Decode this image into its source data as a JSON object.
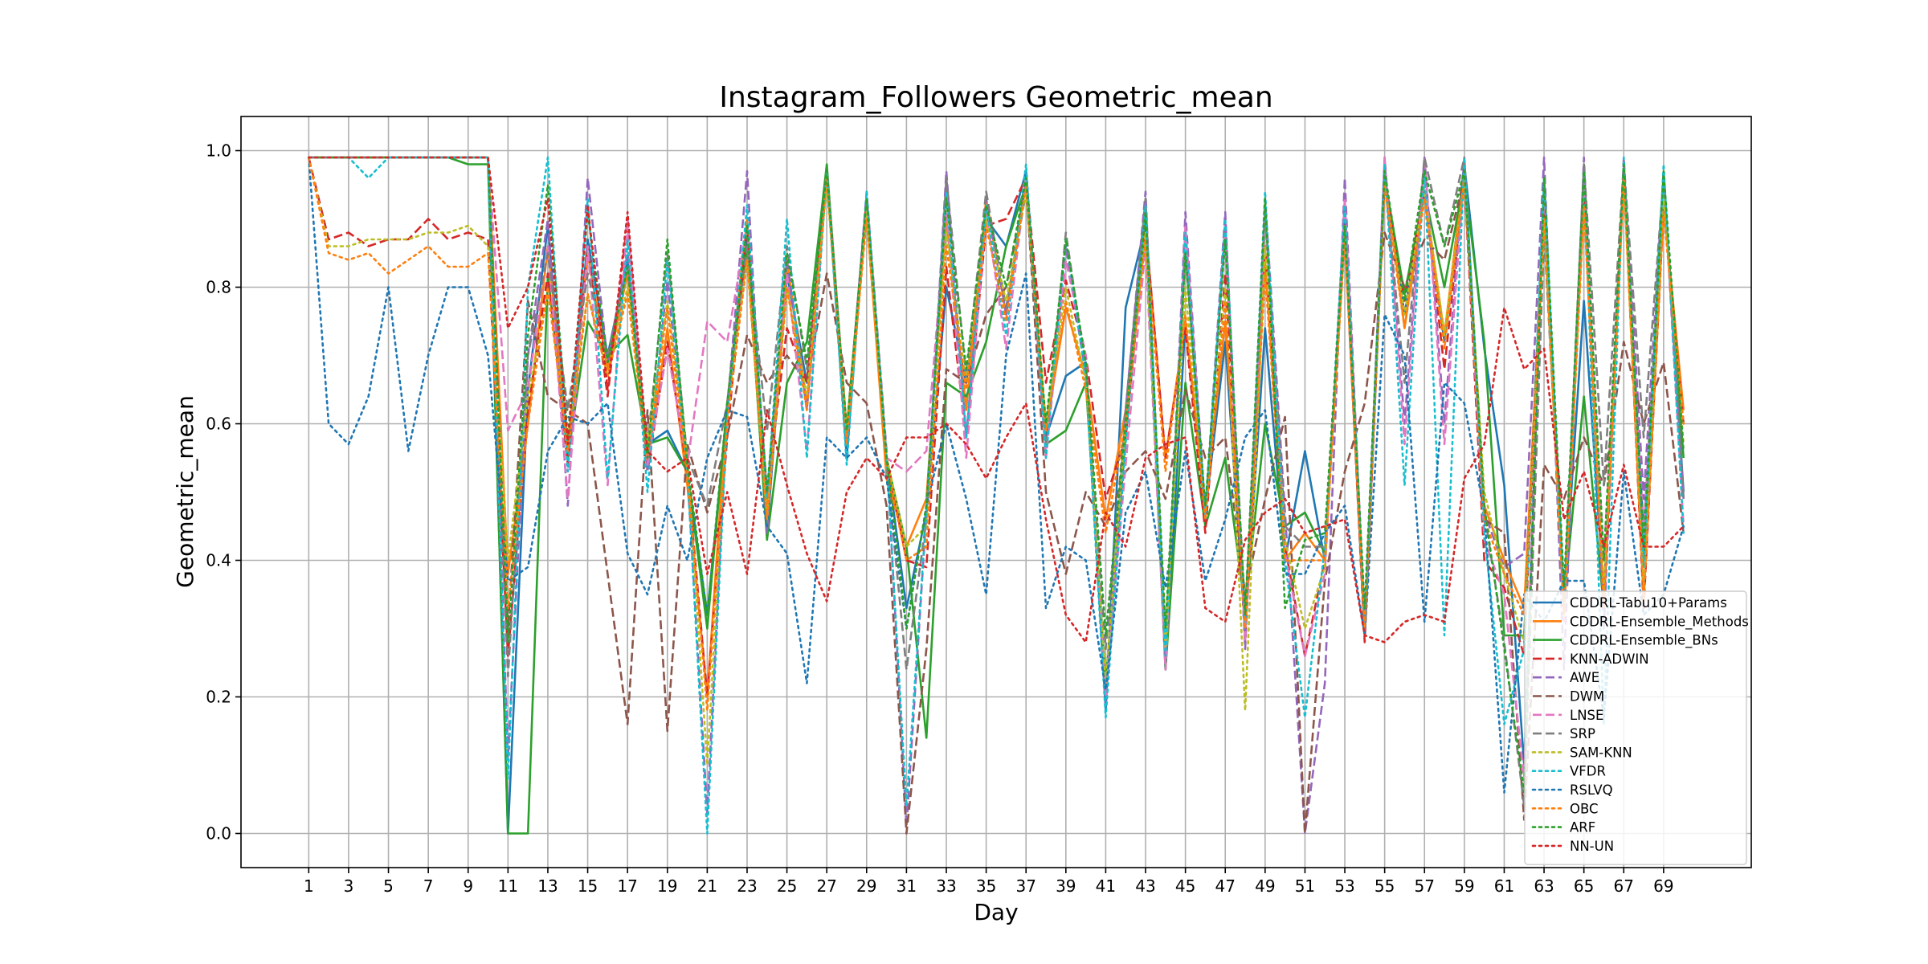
{
  "chart_data": {
    "type": "line",
    "title": "Instagram_Followers Geometric_mean",
    "xlabel": "Day",
    "ylabel": "Geometric_mean",
    "xlim": [
      -2.4,
      73.4
    ],
    "ylim": [
      -0.05,
      1.05
    ],
    "grid": true,
    "legend_position": "lower-right",
    "xticks": [
      1,
      3,
      5,
      7,
      9,
      11,
      13,
      15,
      17,
      19,
      21,
      23,
      25,
      27,
      29,
      31,
      33,
      35,
      37,
      39,
      41,
      43,
      45,
      47,
      49,
      51,
      53,
      55,
      57,
      59,
      61,
      63,
      65,
      67,
      69
    ],
    "yticks": [
      0.0,
      0.2,
      0.4,
      0.6,
      0.8,
      1.0
    ],
    "ytick_labels": [
      "0.0",
      "0.2",
      "0.4",
      "0.6",
      "0.8",
      "1.0"
    ],
    "x_start": 1,
    "series": [
      {
        "name": "CDDRL-Tabu10+Params",
        "color": "#1f77b4",
        "dash": "solid",
        "values": [
          0.99,
          0.99,
          0.99,
          0.99,
          0.99,
          0.99,
          0.99,
          0.99,
          0.99,
          0.99,
          0.0,
          0.65,
          0.89,
          0.55,
          0.87,
          0.7,
          0.84,
          0.57,
          0.59,
          0.53,
          0.32,
          0.62,
          0.87,
          0.44,
          0.82,
          0.66,
          0.97,
          0.55,
          0.93,
          0.55,
          0.33,
          0.47,
          0.8,
          0.66,
          0.9,
          0.86,
          0.97,
          0.58,
          0.67,
          0.69,
          0.18,
          0.77,
          0.89,
          0.24,
          0.75,
          0.47,
          0.72,
          0.3,
          0.74,
          0.4,
          0.56,
          0.4,
          0.91,
          0.3,
          0.96,
          0.76,
          0.94,
          0.72,
          0.98,
          0.71,
          0.51,
          0.1,
          0.95,
          0.34,
          0.78,
          0.35,
          0.97,
          0.44,
          0.95,
          0.5
        ]
      },
      {
        "name": "CDDRL-Ensemble_Methods",
        "color": "#ff7f0e",
        "dash": "solid",
        "values": [
          0.99,
          0.99,
          0.99,
          0.99,
          0.99,
          0.99,
          0.99,
          0.99,
          0.99,
          0.99,
          0.38,
          0.6,
          0.86,
          0.57,
          0.85,
          0.68,
          0.82,
          0.54,
          0.74,
          0.51,
          0.2,
          0.63,
          0.9,
          0.47,
          0.84,
          0.63,
          0.97,
          0.57,
          0.91,
          0.52,
          0.42,
          0.49,
          0.9,
          0.62,
          0.93,
          0.76,
          0.96,
          0.59,
          0.77,
          0.67,
          0.46,
          0.62,
          0.89,
          0.55,
          0.75,
          0.48,
          0.75,
          0.32,
          0.84,
          0.4,
          0.44,
          0.4,
          0.89,
          0.3,
          0.97,
          0.74,
          0.94,
          0.73,
          0.97,
          0.48,
          0.4,
          0.33,
          0.91,
          0.33,
          0.94,
          0.34,
          0.97,
          0.34,
          0.92,
          0.62
        ]
      },
      {
        "name": "CDDRL-Ensemble_BNs",
        "color": "#2ca02c",
        "dash": "solid",
        "values": [
          0.99,
          0.99,
          0.99,
          0.99,
          0.99,
          0.99,
          0.99,
          0.99,
          0.98,
          0.98,
          0.0,
          0.0,
          0.82,
          0.55,
          0.75,
          0.7,
          0.73,
          0.57,
          0.58,
          0.53,
          0.3,
          0.63,
          0.86,
          0.43,
          0.66,
          0.72,
          0.98,
          0.59,
          0.93,
          0.55,
          0.42,
          0.14,
          0.66,
          0.64,
          0.72,
          0.86,
          0.95,
          0.57,
          0.59,
          0.66,
          0.22,
          0.58,
          0.9,
          0.24,
          0.66,
          0.45,
          0.55,
          0.33,
          0.6,
          0.45,
          0.47,
          0.41,
          0.88,
          0.29,
          0.96,
          0.79,
          0.94,
          0.8,
          0.96,
          0.72,
          0.29,
          0.29,
          0.93,
          0.34,
          0.64,
          0.33,
          0.97,
          0.4,
          0.94,
          0.55
        ]
      },
      {
        "name": "KNN-ADWIN",
        "color": "#d62728",
        "dash": "dashed",
        "values": [
          0.99,
          0.87,
          0.88,
          0.86,
          0.87,
          0.87,
          0.9,
          0.87,
          0.88,
          0.87,
          0.26,
          0.62,
          0.82,
          0.54,
          0.86,
          0.64,
          0.9,
          0.53,
          0.72,
          0.53,
          0.2,
          0.58,
          0.89,
          0.5,
          0.74,
          0.66,
          0.97,
          0.59,
          0.93,
          0.55,
          0.4,
          0.39,
          0.83,
          0.58,
          0.89,
          0.9,
          0.96,
          0.66,
          0.81,
          0.7,
          0.49,
          0.58,
          0.89,
          0.55,
          0.74,
          0.44,
          0.82,
          0.28,
          0.86,
          0.42,
          0.26,
          0.4,
          0.88,
          0.28,
          0.96,
          0.78,
          0.94,
          0.68,
          0.96,
          0.4,
          0.36,
          0.26,
          0.92,
          0.33,
          0.93,
          0.33,
          0.97,
          0.33,
          0.92,
          0.6
        ]
      },
      {
        "name": "AWE",
        "color": "#9467bd",
        "dash": "dashed",
        "values": [
          0.99,
          0.99,
          0.99,
          0.99,
          0.99,
          0.99,
          0.99,
          0.99,
          0.99,
          0.99,
          0.11,
          0.7,
          0.9,
          0.48,
          0.96,
          0.69,
          0.85,
          0.53,
          0.81,
          0.53,
          0.03,
          0.62,
          0.97,
          0.44,
          0.84,
          0.62,
          0.97,
          0.58,
          0.94,
          0.56,
          0.01,
          0.47,
          0.97,
          0.58,
          0.93,
          0.76,
          0.96,
          0.55,
          0.86,
          0.67,
          0.19,
          0.62,
          0.94,
          0.25,
          0.91,
          0.47,
          0.91,
          0.27,
          0.93,
          0.47,
          0.0,
          0.22,
          0.96,
          0.3,
          0.99,
          0.6,
          0.99,
          0.6,
          0.99,
          0.47,
          0.39,
          0.41,
          0.99,
          0.24,
          0.99,
          0.3,
          0.99,
          0.49,
          0.97,
          0.49
        ]
      },
      {
        "name": "DWM",
        "color": "#8c564b",
        "dash": "dashed",
        "values": [
          0.99,
          0.99,
          0.99,
          0.99,
          0.99,
          0.99,
          0.99,
          0.99,
          0.99,
          0.99,
          0.3,
          0.78,
          0.64,
          0.62,
          0.6,
          0.38,
          0.16,
          0.62,
          0.15,
          0.57,
          0.47,
          0.58,
          0.73,
          0.66,
          0.7,
          0.66,
          0.82,
          0.66,
          0.63,
          0.48,
          0.0,
          0.27,
          0.68,
          0.66,
          0.76,
          0.8,
          0.95,
          0.5,
          0.38,
          0.5,
          0.45,
          0.53,
          0.56,
          0.49,
          0.65,
          0.55,
          0.58,
          0.35,
          0.49,
          0.61,
          0.0,
          0.37,
          0.53,
          0.63,
          0.88,
          0.8,
          0.87,
          0.84,
          0.96,
          0.46,
          0.44,
          0.02,
          0.54,
          0.49,
          0.58,
          0.51,
          0.72,
          0.6,
          0.69,
          0.44
        ]
      },
      {
        "name": "LNSE",
        "color": "#e377c2",
        "dash": "dashed",
        "values": [
          0.99,
          0.99,
          0.99,
          0.99,
          0.99,
          0.99,
          0.99,
          0.99,
          0.99,
          0.99,
          0.59,
          0.65,
          0.86,
          0.49,
          0.86,
          0.51,
          0.9,
          0.54,
          0.71,
          0.54,
          0.75,
          0.72,
          0.89,
          0.5,
          0.82,
          0.56,
          0.97,
          0.59,
          0.91,
          0.55,
          0.53,
          0.56,
          0.91,
          0.55,
          0.91,
          0.71,
          0.96,
          0.55,
          0.84,
          0.7,
          0.2,
          0.54,
          0.86,
          0.24,
          0.89,
          0.47,
          0.88,
          0.28,
          0.92,
          0.41,
          0.26,
          0.38,
          0.93,
          0.31,
          0.99,
          0.57,
          0.99,
          0.57,
          0.97,
          0.43,
          0.35,
          0.08,
          0.95,
          0.31,
          0.95,
          0.4,
          0.96,
          0.44,
          0.96,
          0.45
        ]
      },
      {
        "name": "SRP",
        "color": "#7f7f7f",
        "dash": "dashed",
        "values": [
          0.99,
          0.99,
          0.99,
          0.99,
          0.99,
          0.99,
          0.99,
          0.99,
          0.99,
          0.99,
          0.23,
          0.7,
          0.85,
          0.62,
          0.82,
          0.7,
          0.83,
          0.57,
          0.85,
          0.55,
          0.48,
          0.63,
          0.86,
          0.59,
          0.86,
          0.68,
          0.97,
          0.58,
          0.92,
          0.54,
          0.24,
          0.46,
          0.96,
          0.67,
          0.94,
          0.77,
          0.94,
          0.57,
          0.88,
          0.68,
          0.27,
          0.62,
          0.93,
          0.28,
          0.85,
          0.47,
          0.88,
          0.32,
          0.91,
          0.45,
          0.42,
          0.42,
          0.88,
          0.29,
          0.96,
          0.66,
          0.99,
          0.86,
          0.99,
          0.47,
          0.28,
          0.04,
          0.88,
          0.34,
          0.98,
          0.51,
          0.98,
          0.58,
          0.96,
          0.49
        ]
      },
      {
        "name": "SAM-KNN",
        "color": "#bcbd22",
        "dash": "dotted",
        "values": [
          0.99,
          0.86,
          0.86,
          0.87,
          0.87,
          0.87,
          0.88,
          0.88,
          0.89,
          0.86,
          0.4,
          0.64,
          0.79,
          0.58,
          0.79,
          0.67,
          0.8,
          0.57,
          0.78,
          0.55,
          0.1,
          0.62,
          0.84,
          0.46,
          0.8,
          0.64,
          0.95,
          0.59,
          0.91,
          0.55,
          0.42,
          0.45,
          0.88,
          0.66,
          0.9,
          0.78,
          0.94,
          0.6,
          0.8,
          0.66,
          0.22,
          0.6,
          0.88,
          0.27,
          0.8,
          0.47,
          0.8,
          0.18,
          0.86,
          0.43,
          0.3,
          0.39,
          0.88,
          0.3,
          0.95,
          0.76,
          0.94,
          0.73,
          0.96,
          0.5,
          0.38,
          0.28,
          0.9,
          0.32,
          0.92,
          0.35,
          0.96,
          0.36,
          0.93,
          0.57
        ]
      },
      {
        "name": "VFDR",
        "color": "#17becf",
        "dash": "dotted",
        "values": [
          0.99,
          0.99,
          0.99,
          0.96,
          0.99,
          0.99,
          0.99,
          0.99,
          0.99,
          0.99,
          0.08,
          0.8,
          0.99,
          0.53,
          0.93,
          0.52,
          0.87,
          0.5,
          0.84,
          0.53,
          0.0,
          0.61,
          0.92,
          0.49,
          0.9,
          0.55,
          0.97,
          0.54,
          0.94,
          0.55,
          0.04,
          0.47,
          0.94,
          0.58,
          0.92,
          0.73,
          0.98,
          0.55,
          0.87,
          0.67,
          0.17,
          0.57,
          0.92,
          0.26,
          0.88,
          0.46,
          0.9,
          0.3,
          0.94,
          0.4,
          0.17,
          0.42,
          0.92,
          0.3,
          0.98,
          0.51,
          0.97,
          0.29,
          0.99,
          0.44,
          0.16,
          0.27,
          0.96,
          0.32,
          0.97,
          0.16,
          0.99,
          0.39,
          0.98,
          0.44
        ]
      },
      {
        "name": "RSLVQ",
        "color": "#1f77b4",
        "dash": "dotted",
        "values": [
          0.99,
          0.6,
          0.57,
          0.64,
          0.8,
          0.56,
          0.7,
          0.8,
          0.8,
          0.7,
          0.37,
          0.39,
          0.56,
          0.61,
          0.6,
          0.63,
          0.41,
          0.35,
          0.48,
          0.4,
          0.55,
          0.62,
          0.61,
          0.45,
          0.41,
          0.22,
          0.58,
          0.55,
          0.58,
          0.52,
          0.3,
          0.48,
          0.6,
          0.49,
          0.35,
          0.7,
          0.82,
          0.33,
          0.42,
          0.4,
          0.21,
          0.47,
          0.53,
          0.36,
          0.56,
          0.37,
          0.46,
          0.58,
          0.62,
          0.38,
          0.38,
          0.44,
          0.48,
          0.29,
          0.76,
          0.7,
          0.31,
          0.66,
          0.63,
          0.47,
          0.06,
          0.35,
          0.31,
          0.37,
          0.37,
          0.17,
          0.53,
          0.32,
          0.35,
          0.45
        ]
      },
      {
        "name": "OBC",
        "color": "#ff7f0e",
        "dash": "dotted",
        "values": [
          0.99,
          0.85,
          0.84,
          0.85,
          0.82,
          0.84,
          0.86,
          0.83,
          0.83,
          0.85,
          0.33,
          0.6,
          0.8,
          0.56,
          0.79,
          0.67,
          0.79,
          0.55,
          0.77,
          0.53,
          0.18,
          0.6,
          0.84,
          0.46,
          0.8,
          0.62,
          0.96,
          0.58,
          0.9,
          0.54,
          0.4,
          0.42,
          0.86,
          0.65,
          0.89,
          0.75,
          0.95,
          0.59,
          0.78,
          0.65,
          0.44,
          0.6,
          0.87,
          0.53,
          0.76,
          0.46,
          0.78,
          0.3,
          0.82,
          0.4,
          0.4,
          0.4,
          0.87,
          0.3,
          0.95,
          0.74,
          0.93,
          0.71,
          0.96,
          0.46,
          0.38,
          0.32,
          0.9,
          0.32,
          0.92,
          0.33,
          0.96,
          0.34,
          0.91,
          0.6
        ]
      },
      {
        "name": "ARF",
        "color": "#2ca02c",
        "dash": "dotted",
        "values": [
          0.99,
          0.99,
          0.99,
          0.99,
          0.99,
          0.99,
          0.99,
          0.99,
          0.99,
          0.99,
          0.28,
          0.73,
          0.95,
          0.58,
          0.91,
          0.69,
          0.83,
          0.55,
          0.87,
          0.54,
          0.32,
          0.63,
          0.89,
          0.5,
          0.85,
          0.69,
          0.97,
          0.59,
          0.93,
          0.55,
          0.3,
          0.48,
          0.93,
          0.68,
          0.92,
          0.8,
          0.96,
          0.6,
          0.87,
          0.69,
          0.29,
          0.6,
          0.91,
          0.3,
          0.85,
          0.48,
          0.87,
          0.32,
          0.93,
          0.33,
          0.43,
          0.44,
          0.89,
          0.33,
          0.97,
          0.78,
          0.97,
          0.86,
          0.97,
          0.48,
          0.27,
          0.06,
          0.96,
          0.36,
          0.97,
          0.4,
          0.98,
          0.42,
          0.97,
          0.56
        ]
      },
      {
        "name": "NN-UN",
        "color": "#d62728",
        "dash": "dotted",
        "values": [
          0.99,
          0.99,
          0.99,
          0.99,
          0.99,
          0.99,
          0.99,
          0.99,
          0.99,
          0.99,
          0.74,
          0.8,
          0.93,
          0.57,
          0.92,
          0.65,
          0.91,
          0.56,
          0.53,
          0.55,
          0.38,
          0.5,
          0.38,
          0.62,
          0.51,
          0.41,
          0.34,
          0.5,
          0.55,
          0.52,
          0.58,
          0.58,
          0.6,
          0.57,
          0.52,
          0.58,
          0.63,
          0.46,
          0.32,
          0.28,
          0.47,
          0.42,
          0.55,
          0.57,
          0.58,
          0.33,
          0.31,
          0.43,
          0.47,
          0.49,
          0.44,
          0.45,
          0.46,
          0.29,
          0.28,
          0.31,
          0.32,
          0.31,
          0.52,
          0.57,
          0.77,
          0.68,
          0.71,
          0.46,
          0.53,
          0.42,
          0.54,
          0.42,
          0.42,
          0.45
        ]
      }
    ]
  }
}
